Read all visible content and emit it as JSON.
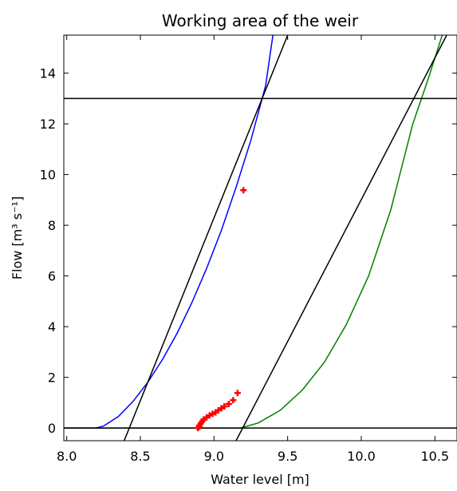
{
  "chart_data": {
    "type": "line",
    "title": "Working area of the weir",
    "xlabel": "Water level [m]",
    "ylabel": "Flow [m³ s⁻¹]",
    "xlim": [
      7.98,
      10.65
    ],
    "ylim": [
      -0.5,
      15.5
    ],
    "x_ticks": [
      8.0,
      8.5,
      9.0,
      9.5,
      10.0,
      10.5
    ],
    "x_tick_labels": [
      "8.0",
      "8.5",
      "9.0",
      "9.5",
      "10.0",
      "10.5"
    ],
    "y_ticks": [
      0,
      2,
      4,
      6,
      8,
      10,
      12,
      14
    ],
    "y_tick_labels": [
      "0",
      "2",
      "4",
      "6",
      "8",
      "10",
      "12",
      "14"
    ],
    "grid": false,
    "legend": "none",
    "colors": {
      "blue_curve": "#0000ff",
      "green_curve": "#008000",
      "black_lines": "#000000",
      "observations": "#ff0000"
    },
    "series": [
      {
        "role": "blue_curve",
        "x": [
          7.98,
          8.2,
          8.25,
          8.35,
          8.45,
          8.55,
          8.65,
          8.75,
          8.85,
          8.95,
          9.05,
          9.15,
          9.25,
          9.35,
          9.4
        ],
        "y": [
          0,
          0,
          0.08,
          0.45,
          1.05,
          1.8,
          2.7,
          3.75,
          4.95,
          6.3,
          7.8,
          9.5,
          11.35,
          13.5,
          15.5
        ]
      },
      {
        "role": "green_curve",
        "x": [
          7.98,
          9.18,
          9.3,
          9.45,
          9.6,
          9.75,
          9.9,
          10.05,
          10.2,
          10.35,
          10.45,
          10.55,
          10.58
        ],
        "y": [
          0,
          0,
          0.2,
          0.7,
          1.5,
          2.6,
          4.1,
          6.0,
          8.6,
          12.0,
          13.7,
          15.5,
          16.0
        ]
      },
      {
        "role": "black_lines",
        "x": [
          8.39,
          9.5
        ],
        "y": [
          -0.5,
          15.5
        ]
      },
      {
        "role": "black_lines",
        "x": [
          9.15,
          10.58
        ],
        "y": [
          -0.5,
          15.5
        ]
      },
      {
        "role": "black_lines",
        "x": [
          7.98,
          10.65
        ],
        "y": [
          13,
          13
        ]
      },
      {
        "role": "black_lines",
        "x": [
          7.98,
          10.65
        ],
        "y": [
          0,
          0
        ]
      }
    ],
    "points": {
      "marker": "+",
      "x": [
        8.89,
        8.9,
        8.9,
        8.91,
        8.92,
        8.93,
        8.95,
        8.97,
        8.99,
        9.01,
        9.03,
        9.05,
        9.07,
        9.1,
        9.13,
        9.16,
        9.2
      ],
      "y": [
        0.0,
        0.05,
        0.1,
        0.18,
        0.26,
        0.34,
        0.42,
        0.5,
        0.56,
        0.62,
        0.7,
        0.78,
        0.85,
        0.95,
        1.1,
        1.38,
        9.38
      ]
    }
  }
}
